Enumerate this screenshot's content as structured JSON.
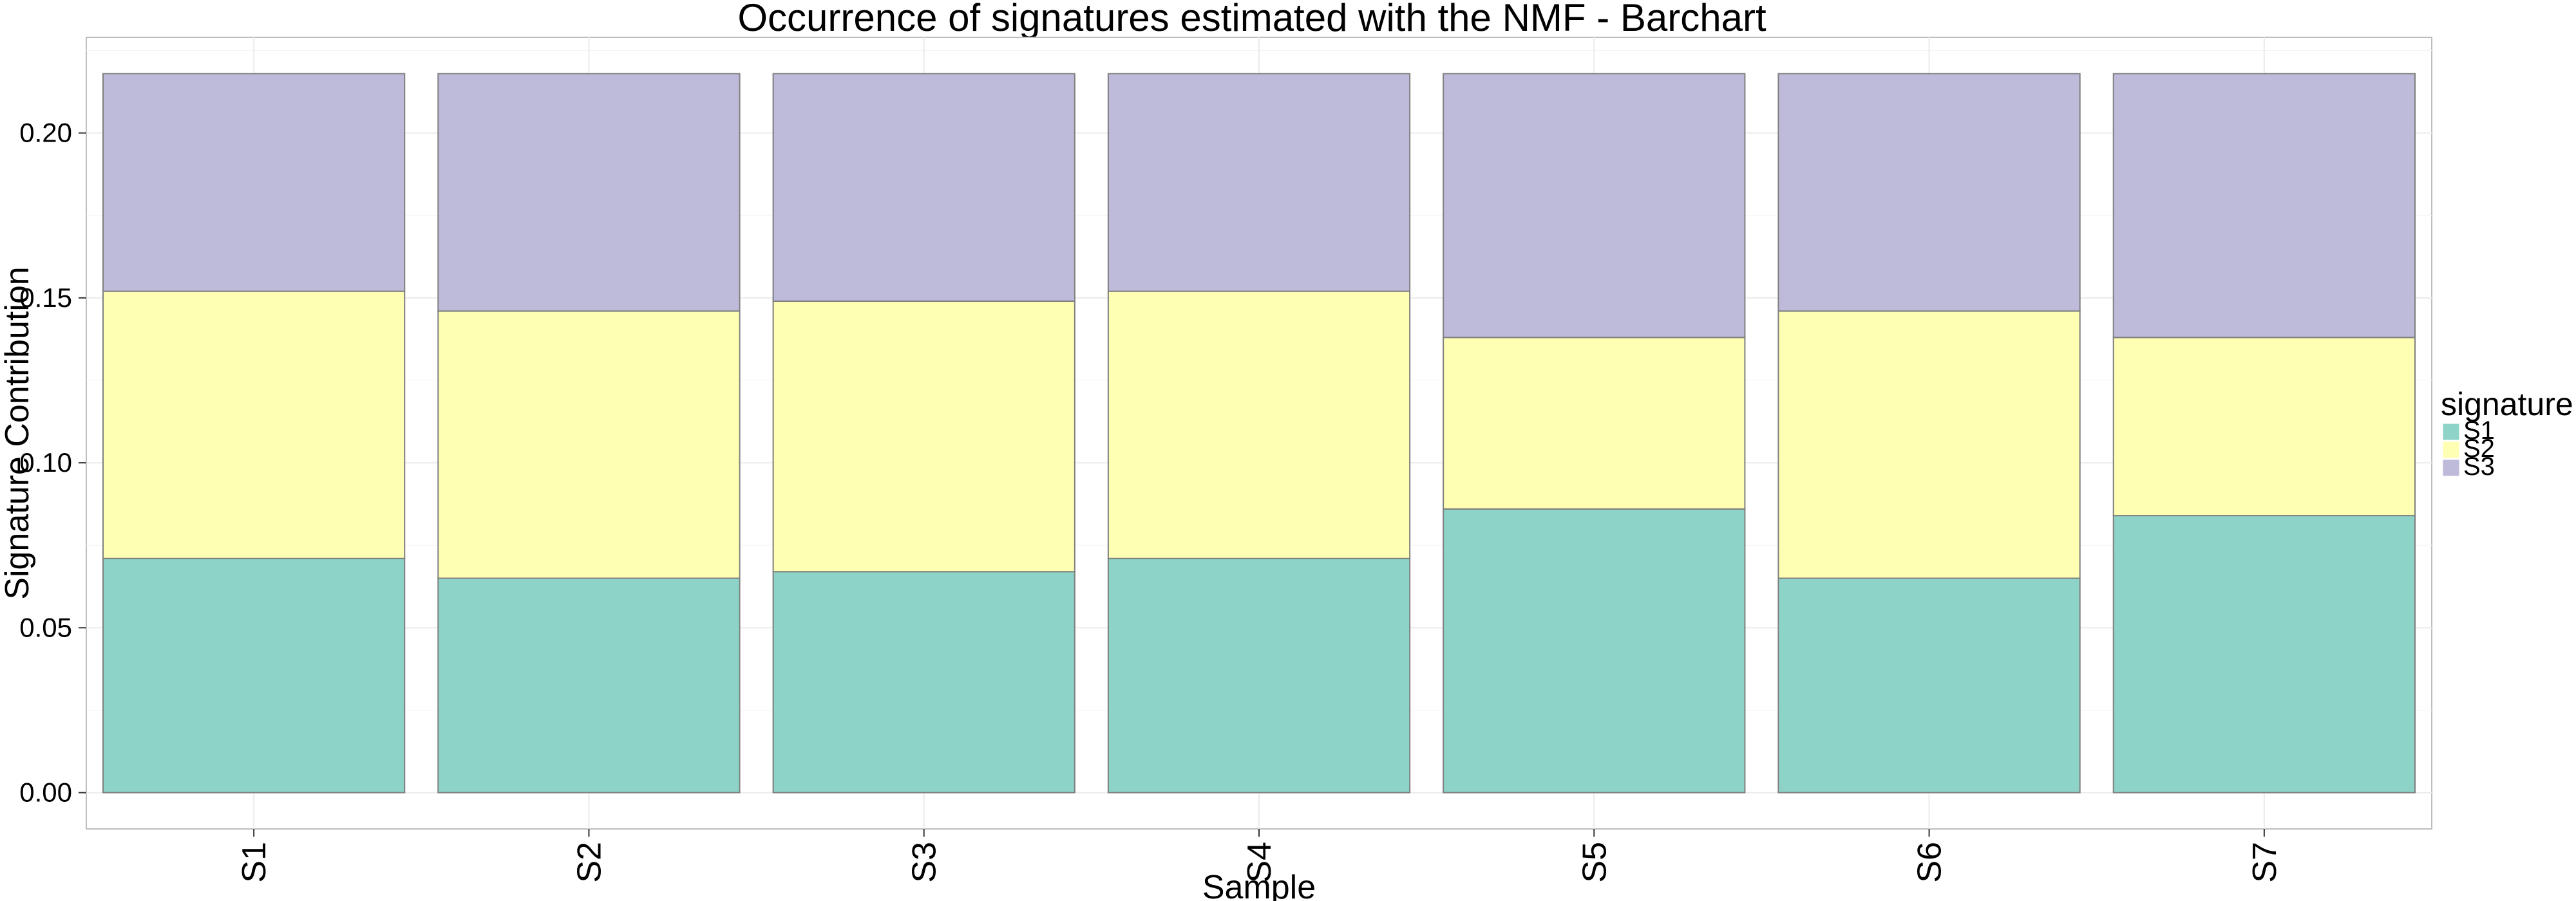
{
  "chart_data": {
    "type": "bar",
    "stacked": true,
    "title": "Occurrence of signatures estimated with the NMF - Barchart",
    "xlabel": "Sample",
    "ylabel": "Signature Contribution",
    "categories": [
      "S1",
      "S2",
      "S3",
      "S4",
      "S5",
      "S6",
      "S7"
    ],
    "series": [
      {
        "name": "S1",
        "color": "#8dd3c7",
        "values": [
          0.071,
          0.065,
          0.067,
          0.071,
          0.086,
          0.065,
          0.084
        ]
      },
      {
        "name": "S2",
        "color": "#ffffb3",
        "values": [
          0.081,
          0.081,
          0.082,
          0.081,
          0.052,
          0.081,
          0.054
        ]
      },
      {
        "name": "S3",
        "color": "#bebada",
        "values": [
          0.066,
          0.072,
          0.069,
          0.066,
          0.08,
          0.072,
          0.08
        ]
      }
    ],
    "ylim": [
      -0.011,
      0.229
    ],
    "yticks": [
      0.0,
      0.05,
      0.1,
      0.15,
      0.2
    ],
    "ytick_labels": [
      "0.00",
      "0.05",
      "0.10",
      "0.15",
      "0.20"
    ],
    "legend_title": "signature",
    "legend_position": "right",
    "grid": true
  }
}
